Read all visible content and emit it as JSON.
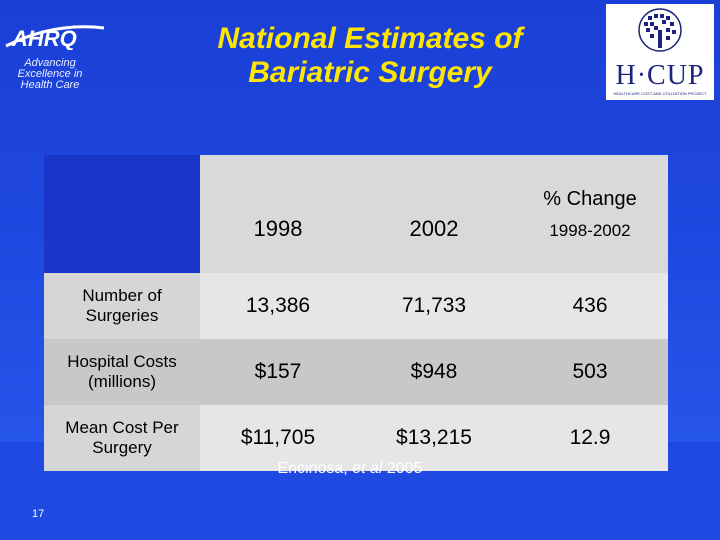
{
  "header": {
    "logo_text": "AHRQ",
    "tagline": "Advancing Excellence in Health Care",
    "title_line1": "National Estimates of",
    "title_line2": "Bariatric Surgery",
    "hcup_text": "H·CUP",
    "hcup_subtitle": "HEALTHCARE COST AND UTILIZATION PROJECT"
  },
  "table": {
    "columns": [
      "1998",
      "2002"
    ],
    "change_header_line1": "% Change",
    "change_header_line2": "1998-2002",
    "rows": [
      {
        "label": "Number of Surgeries",
        "v1998": "13,386",
        "v2002": "71,733",
        "change": "436"
      },
      {
        "label": "Hospital Costs (millions)",
        "v1998": "$157",
        "v2002": "$948",
        "change": "503"
      },
      {
        "label": "Mean Cost Per Surgery",
        "v1998": "$11,705",
        "v2002": "$13,215",
        "change": "12.9"
      }
    ]
  },
  "footer": {
    "citation_pre": "Encinosa, ",
    "citation_italic": "et al",
    "citation_post": " 2005",
    "slide_number": "17"
  },
  "colors": {
    "background": "#1f49e0",
    "title": "#ffe600"
  }
}
